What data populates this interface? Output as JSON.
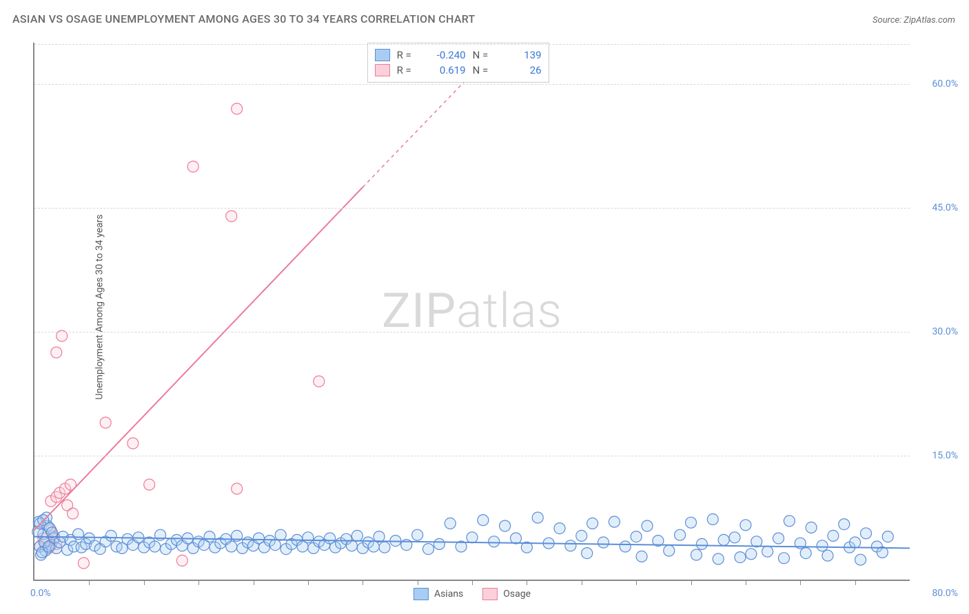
{
  "title": "ASIAN VS OSAGE UNEMPLOYMENT AMONG AGES 30 TO 34 YEARS CORRELATION CHART",
  "source": "Source: ZipAtlas.com",
  "ylabel": "Unemployment Among Ages 30 to 34 years",
  "watermark_bold": "ZIP",
  "watermark_thin": "atlas",
  "chart": {
    "type": "scatter",
    "xlim": [
      0,
      80
    ],
    "ylim": [
      0,
      65
    ],
    "x_origin_label": "0.0%",
    "x_max_label": "80.0%",
    "y_ticks": [
      15.0,
      30.0,
      45.0,
      60.0
    ],
    "y_tick_labels": [
      "15.0%",
      "30.0%",
      "45.0%",
      "60.0%"
    ],
    "x_minor_ticks": [
      5,
      10,
      15,
      20,
      25,
      30,
      35,
      40,
      45,
      50,
      55,
      60,
      65,
      70,
      75
    ],
    "background_color": "#ffffff",
    "grid_color": "#d8d8d8",
    "marker_radius": 8,
    "marker_opacity": 0.35,
    "line_width": 2
  },
  "series": {
    "asians": {
      "label": "Asians",
      "color_fill": "#a9cdf2",
      "color_stroke": "#5b8dd6",
      "R": "-0.240",
      "N": "139",
      "trend": {
        "x1": 0,
        "y1": 5.2,
        "x2": 80,
        "y2": 3.8
      },
      "points": [
        [
          0.5,
          4.0
        ],
        [
          0.8,
          5.5
        ],
        [
          1.0,
          3.5
        ],
        [
          1.2,
          6.5
        ],
        [
          1.5,
          4.2
        ],
        [
          1.8,
          5.0
        ],
        [
          2.0,
          3.8
        ],
        [
          2.3,
          4.5
        ],
        [
          2.6,
          5.2
        ],
        [
          3.0,
          3.6
        ],
        [
          3.3,
          4.8
        ],
        [
          3.6,
          4.0
        ],
        [
          4.0,
          5.5
        ],
        [
          4.3,
          3.9
        ],
        [
          4.7,
          4.3
        ],
        [
          5.0,
          5.0
        ],
        [
          5.5,
          4.1
        ],
        [
          6.0,
          3.7
        ],
        [
          6.5,
          4.6
        ],
        [
          7.0,
          5.3
        ],
        [
          7.5,
          4.0
        ],
        [
          8.0,
          3.8
        ],
        [
          8.5,
          4.9
        ],
        [
          9.0,
          4.2
        ],
        [
          9.5,
          5.1
        ],
        [
          10.0,
          3.9
        ],
        [
          10.5,
          4.5
        ],
        [
          11.0,
          4.0
        ],
        [
          11.5,
          5.4
        ],
        [
          12.0,
          3.7
        ],
        [
          12.5,
          4.3
        ],
        [
          13.0,
          4.8
        ],
        [
          13.5,
          4.1
        ],
        [
          14.0,
          5.0
        ],
        [
          14.5,
          3.8
        ],
        [
          15.0,
          4.6
        ],
        [
          15.5,
          4.2
        ],
        [
          16.0,
          5.2
        ],
        [
          16.5,
          3.9
        ],
        [
          17.0,
          4.4
        ],
        [
          17.5,
          4.9
        ],
        [
          18.0,
          4.0
        ],
        [
          18.5,
          5.3
        ],
        [
          19.0,
          3.8
        ],
        [
          19.5,
          4.5
        ],
        [
          20.0,
          4.1
        ],
        [
          20.5,
          5.0
        ],
        [
          21.0,
          3.9
        ],
        [
          21.5,
          4.7
        ],
        [
          22.0,
          4.2
        ],
        [
          22.5,
          5.4
        ],
        [
          23.0,
          3.7
        ],
        [
          23.5,
          4.3
        ],
        [
          24.0,
          4.8
        ],
        [
          24.5,
          4.0
        ],
        [
          25.0,
          5.1
        ],
        [
          25.5,
          3.8
        ],
        [
          26.0,
          4.6
        ],
        [
          26.5,
          4.2
        ],
        [
          27.0,
          5.0
        ],
        [
          27.5,
          3.9
        ],
        [
          28.0,
          4.4
        ],
        [
          28.5,
          4.9
        ],
        [
          29.0,
          4.1
        ],
        [
          29.5,
          5.3
        ],
        [
          30.0,
          3.8
        ],
        [
          30.5,
          4.5
        ],
        [
          31.0,
          4.0
        ],
        [
          31.5,
          5.2
        ],
        [
          32.0,
          3.9
        ],
        [
          33.0,
          4.7
        ],
        [
          34.0,
          4.2
        ],
        [
          35.0,
          5.4
        ],
        [
          36.0,
          3.7
        ],
        [
          37.0,
          4.3
        ],
        [
          38.0,
          6.8
        ],
        [
          39.0,
          4.0
        ],
        [
          40.0,
          5.1
        ],
        [
          41.0,
          7.2
        ],
        [
          42.0,
          4.6
        ],
        [
          43.0,
          6.5
        ],
        [
          44.0,
          5.0
        ],
        [
          45.0,
          3.9
        ],
        [
          46.0,
          7.5
        ],
        [
          47.0,
          4.4
        ],
        [
          48.0,
          6.2
        ],
        [
          49.0,
          4.1
        ],
        [
          50.0,
          5.3
        ],
        [
          50.5,
          3.2
        ],
        [
          51.0,
          6.8
        ],
        [
          52.0,
          4.5
        ],
        [
          53.0,
          7.0
        ],
        [
          54.0,
          4.0
        ],
        [
          55.0,
          5.2
        ],
        [
          55.5,
          2.8
        ],
        [
          56.0,
          6.5
        ],
        [
          57.0,
          4.7
        ],
        [
          58.0,
          3.5
        ],
        [
          59.0,
          5.4
        ],
        [
          60.0,
          6.9
        ],
        [
          60.5,
          3.0
        ],
        [
          61.0,
          4.3
        ],
        [
          62.0,
          7.3
        ],
        [
          62.5,
          2.5
        ],
        [
          63.0,
          4.8
        ],
        [
          64.0,
          5.1
        ],
        [
          64.5,
          2.7
        ],
        [
          65.0,
          6.6
        ],
        [
          65.5,
          3.1
        ],
        [
          66.0,
          4.6
        ],
        [
          67.0,
          3.4
        ],
        [
          68.0,
          5.0
        ],
        [
          68.5,
          2.6
        ],
        [
          69.0,
          7.1
        ],
        [
          70.0,
          4.4
        ],
        [
          70.5,
          3.2
        ],
        [
          71.0,
          6.3
        ],
        [
          72.0,
          4.1
        ],
        [
          72.5,
          2.9
        ],
        [
          73.0,
          5.3
        ],
        [
          74.0,
          6.7
        ],
        [
          74.5,
          3.9
        ],
        [
          75.0,
          4.5
        ],
        [
          75.5,
          2.4
        ],
        [
          76.0,
          5.6
        ],
        [
          77.0,
          4.0
        ],
        [
          77.5,
          3.3
        ],
        [
          78.0,
          5.2
        ],
        [
          0.4,
          7.0
        ],
        [
          0.6,
          3.0
        ],
        [
          1.1,
          7.5
        ],
        [
          0.3,
          5.8
        ],
        [
          0.9,
          4.5
        ],
        [
          1.4,
          6.2
        ],
        [
          0.7,
          3.3
        ],
        [
          1.6,
          5.7
        ],
        [
          0.5,
          6.8
        ],
        [
          1.3,
          4.0
        ],
        [
          0.8,
          7.2
        ]
      ]
    },
    "osage": {
      "label": "Osage",
      "color_fill": "#fbd0da",
      "color_stroke": "#ed7a9a",
      "R": "0.619",
      "N": "26",
      "trend_solid": {
        "x1": 0,
        "y1": 6.0,
        "x2": 30,
        "y2": 47.5
      },
      "trend_dashed": {
        "x1": 30,
        "y1": 47.5,
        "x2": 42,
        "y2": 64.0
      },
      "points": [
        [
          0.5,
          4.0
        ],
        [
          0.8,
          5.0
        ],
        [
          1.0,
          4.5
        ],
        [
          1.3,
          3.8
        ],
        [
          1.5,
          6.0
        ],
        [
          1.8,
          5.2
        ],
        [
          2.0,
          4.3
        ],
        [
          1.5,
          9.5
        ],
        [
          2.0,
          10.0
        ],
        [
          2.3,
          10.5
        ],
        [
          2.8,
          11.0
        ],
        [
          3.0,
          9.0
        ],
        [
          3.3,
          11.5
        ],
        [
          4.5,
          2.0
        ],
        [
          13.5,
          2.3
        ],
        [
          2.0,
          27.5
        ],
        [
          2.5,
          29.5
        ],
        [
          6.5,
          19.0
        ],
        [
          9.0,
          16.5
        ],
        [
          10.5,
          11.5
        ],
        [
          18.5,
          11.0
        ],
        [
          14.5,
          50.0
        ],
        [
          18.0,
          44.0
        ],
        [
          18.5,
          57.0
        ],
        [
          26.0,
          24.0
        ],
        [
          3.5,
          8.0
        ]
      ]
    }
  }
}
